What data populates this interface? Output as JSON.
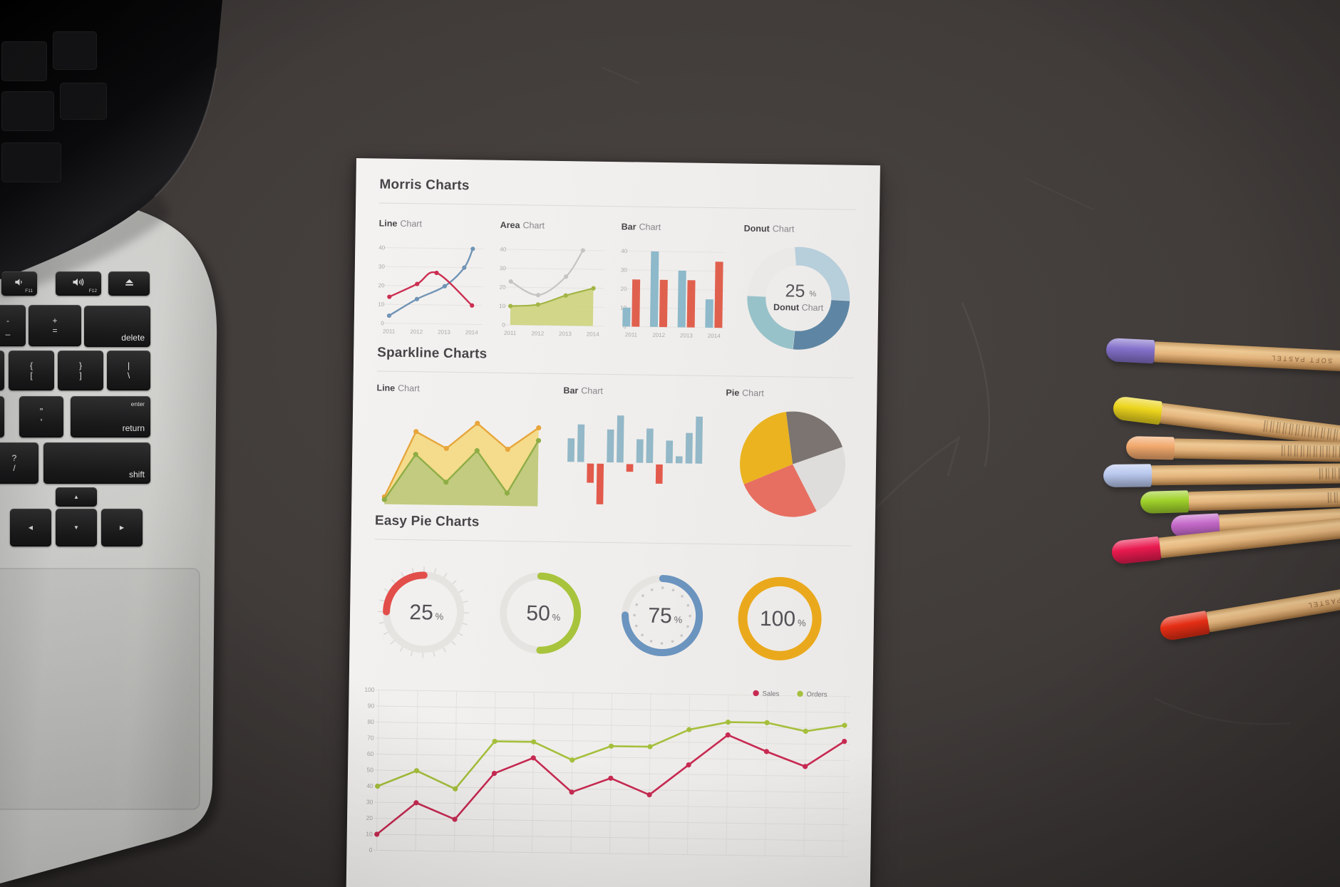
{
  "paper": {
    "morris_title": "Morris Charts",
    "sparkline_title": "Sparkline Charts",
    "easypie_title": "Easy Pie Charts",
    "labels": {
      "morris_line": {
        "b": "Line",
        "r": "Chart"
      },
      "morris_area": {
        "b": "Area",
        "r": "Chart"
      },
      "morris_bar": {
        "b": "Bar",
        "r": "Chart"
      },
      "morris_donut": {
        "b": "Donut",
        "r": "Chart"
      },
      "spark_line": {
        "b": "Line",
        "r": "Chart"
      },
      "spark_bar": {
        "b": "Bar",
        "r": "Chart"
      },
      "spark_pie": {
        "b": "Pie",
        "r": "Chart"
      }
    }
  },
  "chart_data": [
    {
      "id": "morris-line",
      "type": "line",
      "title": "Line Chart",
      "x_ticks": [
        "2011",
        "2012",
        "2013",
        "2014"
      ],
      "y_ticks": [
        40,
        30,
        20,
        10,
        0
      ],
      "ylim": [
        0,
        40
      ],
      "series": [
        {
          "name": "blue",
          "color": "#7094b5",
          "points": [
            [
              0,
              4
            ],
            [
              1,
              13
            ],
            [
              2,
              20
            ],
            [
              2.7,
              30
            ],
            [
              3,
              40
            ]
          ]
        },
        {
          "name": "red",
          "color": "#cb2e51",
          "points": [
            [
              0,
              14
            ],
            [
              1,
              21
            ],
            [
              1.7,
              27
            ],
            [
              3,
              10
            ]
          ]
        }
      ]
    },
    {
      "id": "morris-area",
      "type": "area",
      "title": "Area Chart",
      "x_ticks": [
        "2011",
        "2012",
        "2013",
        "2014"
      ],
      "y_ticks": [
        40,
        30,
        20,
        10,
        0
      ],
      "ylim": [
        0,
        40
      ],
      "series": [
        {
          "name": "gray",
          "color": "#c6c4c2",
          "points": [
            [
              0,
              23
            ],
            [
              1,
              16
            ],
            [
              2,
              26
            ],
            [
              2.6,
              40
            ]
          ]
        },
        {
          "name": "green",
          "color": "#a2b544",
          "fill": "#cdd37d",
          "points": [
            [
              0,
              10
            ],
            [
              1,
              11
            ],
            [
              2,
              16
            ],
            [
              3,
              20
            ]
          ]
        }
      ]
    },
    {
      "id": "morris-bar",
      "type": "bar",
      "title": "Bar Chart",
      "categories": [
        "2011",
        "2012",
        "2013",
        "2014"
      ],
      "x_ticks": [
        "2011",
        "2012",
        "2013",
        "2014"
      ],
      "y_ticks": [
        40,
        30,
        20,
        10,
        0
      ],
      "ylim": [
        0,
        40
      ],
      "series": [
        {
          "name": "blue",
          "color": "#8db9ca",
          "values": [
            10,
            40,
            30,
            15
          ]
        },
        {
          "name": "red",
          "color": "#e0604e",
          "values": [
            25,
            25,
            25,
            35
          ]
        }
      ]
    },
    {
      "id": "morris-donut",
      "type": "donut",
      "title": "Donut Chart",
      "center_value": "25",
      "center_pct": "%",
      "center_label_bold": "Donut",
      "center_label_rest": " Chart",
      "start_angle": -5,
      "segments": [
        {
          "color": "#b7cedb",
          "value": 27
        },
        {
          "color": "#5e86a4",
          "value": 26
        },
        {
          "color": "#98c2c9",
          "value": 24
        },
        {
          "color": "#eae9e7",
          "value": 23
        }
      ]
    },
    {
      "id": "spark-area",
      "type": "sparkline-area",
      "title": "Line Chart",
      "ylim": [
        0,
        100
      ],
      "series": [
        {
          "name": "orange",
          "color": "#e7a63c",
          "fill": "#f4d87a",
          "fill_opacity": 0.85,
          "values": [
            8,
            80,
            62,
            90,
            62,
            86
          ]
        },
        {
          "name": "green",
          "color": "#8fad45",
          "fill": "#b9c87e",
          "fill_opacity": 0.85,
          "values": [
            5,
            55,
            25,
            60,
            14,
            72
          ]
        }
      ]
    },
    {
      "id": "spark-bar",
      "type": "sparkline-bar",
      "title": "Bar Chart",
      "ylim": [
        -100,
        100
      ],
      "pos_color": "#93b8c8",
      "neg_color": "#e25a4c",
      "values": [
        50,
        80,
        -45,
        -95,
        70,
        100,
        -18,
        50,
        73,
        -45,
        48,
        15,
        65,
        100
      ]
    },
    {
      "id": "spark-pie",
      "type": "pie",
      "title": "Pie Chart",
      "start_angle": -8,
      "slices": [
        {
          "name": "dark-gray",
          "color": "#7b7470",
          "value": 21.7
        },
        {
          "name": "light-gray",
          "color": "#dedddb",
          "value": 22.8
        },
        {
          "name": "red",
          "color": "#e76f61",
          "value": 26.3
        },
        {
          "name": "yellow",
          "color": "#eab31f",
          "value": 29.2
        }
      ]
    },
    {
      "id": "gauge-25",
      "type": "gauge",
      "value": 25,
      "label": "25",
      "pct": "%",
      "color": "#e24e4a",
      "track": "#e6e4e1",
      "ticks": "outside"
    },
    {
      "id": "gauge-50",
      "type": "gauge",
      "value": 50,
      "label": "50",
      "pct": "%",
      "color": "#a8c43c",
      "track": "#e6e4e1"
    },
    {
      "id": "gauge-75",
      "type": "gauge",
      "value": 75,
      "label": "75",
      "pct": "%",
      "color": "#6b94bf",
      "track": "#e6e4e1",
      "ticks": "dots"
    },
    {
      "id": "gauge-100",
      "type": "gauge",
      "value": 100,
      "label": "100",
      "pct": "%",
      "color": "#eaa91c",
      "track": "#e6e4e1",
      "thick": true
    },
    {
      "id": "big-line",
      "type": "line",
      "y_ticks": [
        100,
        90,
        80,
        70,
        60,
        50,
        40,
        30,
        20,
        10,
        0
      ],
      "ylim": [
        0,
        100
      ],
      "grid": true,
      "legend_position": "top-right",
      "legend": [
        {
          "label": "Sales",
          "color": "#c72a52"
        },
        {
          "label": "Orders",
          "color": "#a5bf3c"
        }
      ],
      "series": [
        {
          "name": "Sales",
          "color": "#c72a52",
          "values": [
            10,
            30,
            20,
            49,
            59,
            38,
            47,
            37,
            56,
            75,
            65,
            56,
            72
          ]
        },
        {
          "name": "Orders",
          "color": "#a5bf3c",
          "values": [
            40,
            50,
            39,
            69,
            69,
            58,
            67,
            67,
            78,
            83,
            83,
            78,
            82
          ]
        }
      ]
    }
  ],
  "laptop": {
    "keys": {
      "f11": {
        "sub": "F11"
      },
      "f12": {
        "sub": "F12"
      },
      "minus": {
        "top": "-",
        "bottom": "_"
      },
      "equals": {
        "top": "+",
        "bottom": "="
      },
      "del": {
        "label": "delete"
      },
      "bracketl": {
        "top": "{",
        "bottom": "["
      },
      "bracketr": {
        "top": "}",
        "bottom": "]"
      },
      "backslash": {
        "top": "|",
        "bottom": "\\"
      },
      "quote": {
        "top": "”",
        "bottom": "’"
      },
      "ret": {
        "top": "enter",
        "bottom": "return"
      },
      "question": {
        "top": "?",
        "bottom": "/"
      },
      "shift": {
        "label": "shift"
      },
      "up": {
        "label": "▲"
      },
      "left": {
        "label": "◀"
      },
      "down": {
        "label": "▼"
      },
      "right": {
        "label": "▶"
      }
    }
  },
  "pencils": {
    "label": "SOFT PASTEL",
    "tips": [
      {
        "name": "violet",
        "color": "#8471cb"
      },
      {
        "name": "yellow",
        "color": "#ecd51d"
      },
      {
        "name": "peach",
        "color": "#f2a96d"
      },
      {
        "name": "periwinkle",
        "color": "#b9c8ee"
      },
      {
        "name": "lime",
        "color": "#a0d22b"
      },
      {
        "name": "orchid",
        "color": "#c468c9"
      },
      {
        "name": "crimson",
        "color": "#e91a4f"
      },
      {
        "name": "red",
        "color": "#ec2f15"
      }
    ]
  }
}
